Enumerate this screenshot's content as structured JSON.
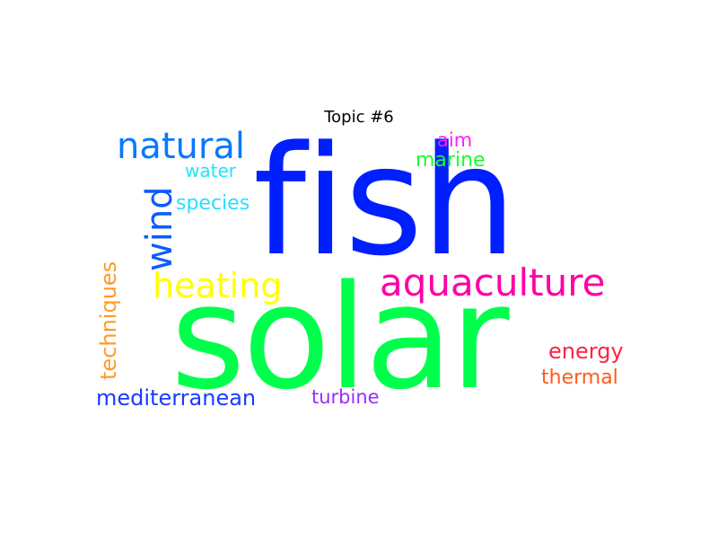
{
  "title": "Topic #6",
  "words": {
    "fish": {
      "text": "fish",
      "color": "#001fff"
    },
    "solar": {
      "text": "solar",
      "color": "#00ff4c"
    },
    "aquaculture": {
      "text": "aquaculture",
      "color": "#ff00a5"
    },
    "heating": {
      "text": "heating",
      "color": "#ffff00"
    },
    "natural": {
      "text": "natural",
      "color": "#0a78ff"
    },
    "wind": {
      "text": "wind",
      "color": "#0a5cff"
    },
    "water": {
      "text": "water",
      "color": "#1ce5ff"
    },
    "species": {
      "text": "species",
      "color": "#29ddff"
    },
    "aim": {
      "text": "aim",
      "color": "#ff1ff0"
    },
    "marine": {
      "text": "marine",
      "color": "#17ff2e"
    },
    "techniques": {
      "text": "techniques",
      "color": "#ff9a26"
    },
    "mediterranean": {
      "text": "mediterranean",
      "color": "#1a3bff"
    },
    "turbine": {
      "text": "turbine",
      "color": "#9b2bff"
    },
    "energy": {
      "text": "energy",
      "color": "#ff2244"
    },
    "thermal": {
      "text": "thermal",
      "color": "#ff5a18"
    }
  }
}
